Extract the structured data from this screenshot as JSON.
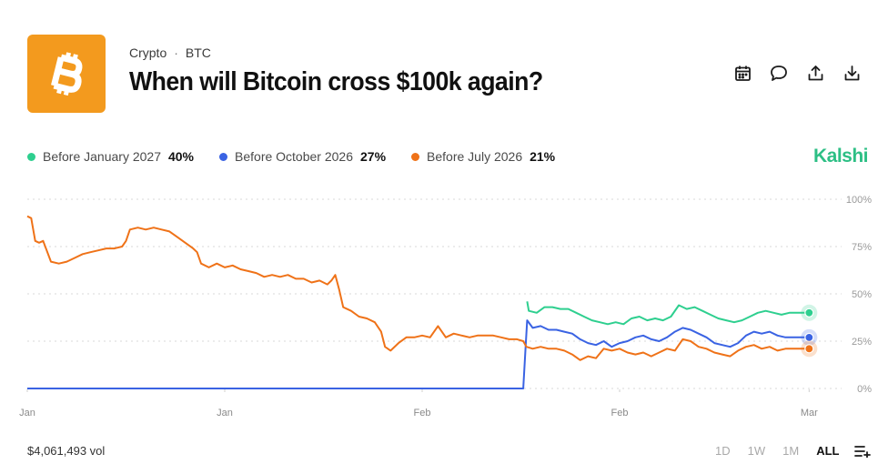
{
  "header": {
    "category": "Crypto",
    "separator": "·",
    "subcategory": "BTC",
    "title": "When will Bitcoin cross $100k again?",
    "logo_color": "#f39a1e",
    "actions": [
      {
        "name": "calendar-icon"
      },
      {
        "name": "comment-icon"
      },
      {
        "name": "share-icon"
      },
      {
        "name": "download-icon"
      }
    ]
  },
  "brand": "Kalshi",
  "footer": {
    "volume": "$4,061,493 vol",
    "ranges": [
      "1D",
      "1W",
      "1M",
      "ALL"
    ],
    "active_range": "ALL"
  },
  "chart_data": {
    "type": "line",
    "title": "When will Bitcoin cross $100k again?",
    "ylim": [
      0,
      100
    ],
    "y_unit": "%",
    "y_ticks": [
      "100%",
      "75%",
      "50%",
      "25%",
      "0%"
    ],
    "x_ticks": [
      "Jan",
      "Jan",
      "Feb",
      "Feb",
      "Mar"
    ],
    "x_domain": [
      0,
      100
    ],
    "series": [
      {
        "name": "Before January 2027",
        "label": "Before January 2027",
        "current": "40%",
        "color": "#2ecf8f",
        "points": [
          [
            63.3,
            46
          ],
          [
            63.5,
            41
          ],
          [
            64.5,
            40
          ],
          [
            65.5,
            43
          ],
          [
            66.5,
            43
          ],
          [
            67.5,
            42
          ],
          [
            68.5,
            42
          ],
          [
            69.5,
            40
          ],
          [
            70.5,
            38
          ],
          [
            71.5,
            36
          ],
          [
            72.5,
            35
          ],
          [
            73.5,
            34
          ],
          [
            74.5,
            35
          ],
          [
            75.5,
            34
          ],
          [
            76.5,
            37
          ],
          [
            77.5,
            38
          ],
          [
            78.5,
            36
          ],
          [
            79.5,
            37
          ],
          [
            80.5,
            36
          ],
          [
            81.5,
            38
          ],
          [
            82.5,
            44
          ],
          [
            83.5,
            42
          ],
          [
            84.5,
            43
          ],
          [
            85.5,
            41
          ],
          [
            86.5,
            39
          ],
          [
            87.5,
            37
          ],
          [
            88.5,
            36
          ],
          [
            89.5,
            35
          ],
          [
            90.5,
            36
          ],
          [
            91.5,
            38
          ],
          [
            92.5,
            40
          ],
          [
            93.5,
            41
          ],
          [
            94.5,
            40
          ],
          [
            95.5,
            39
          ],
          [
            96.5,
            40
          ],
          [
            97.5,
            40
          ],
          [
            99,
            40
          ]
        ]
      },
      {
        "name": "Before October 2026",
        "label": "Before October 2026",
        "current": "27%",
        "color": "#3a63e3",
        "points": [
          [
            0,
            0
          ],
          [
            62.8,
            0
          ],
          [
            63.1,
            22
          ],
          [
            63.3,
            36
          ],
          [
            64,
            32
          ],
          [
            65,
            33
          ],
          [
            66,
            31
          ],
          [
            67,
            31
          ],
          [
            68,
            30
          ],
          [
            69,
            29
          ],
          [
            70,
            26
          ],
          [
            71,
            24
          ],
          [
            72,
            23
          ],
          [
            73,
            25
          ],
          [
            74,
            22
          ],
          [
            75,
            24
          ],
          [
            76,
            25
          ],
          [
            77,
            27
          ],
          [
            78,
            28
          ],
          [
            79,
            26
          ],
          [
            80,
            25
          ],
          [
            81,
            27
          ],
          [
            82,
            30
          ],
          [
            83,
            32
          ],
          [
            84,
            31
          ],
          [
            85,
            29
          ],
          [
            86,
            27
          ],
          [
            87,
            24
          ],
          [
            88,
            23
          ],
          [
            89,
            22
          ],
          [
            90,
            24
          ],
          [
            91,
            28
          ],
          [
            92,
            30
          ],
          [
            93,
            29
          ],
          [
            94,
            30
          ],
          [
            95,
            28
          ],
          [
            96,
            27
          ],
          [
            97,
            27
          ],
          [
            99,
            27
          ]
        ]
      },
      {
        "name": "Before July 2026",
        "label": "Before July 2026",
        "current": "21%",
        "color": "#ef7218",
        "points": [
          [
            0,
            91
          ],
          [
            0.5,
            90
          ],
          [
            1,
            78
          ],
          [
            1.5,
            77
          ],
          [
            2,
            78
          ],
          [
            3,
            67
          ],
          [
            4,
            66
          ],
          [
            5,
            67
          ],
          [
            6,
            69
          ],
          [
            7,
            71
          ],
          [
            8,
            72
          ],
          [
            9,
            73
          ],
          [
            10,
            74
          ],
          [
            11,
            74
          ],
          [
            12,
            75
          ],
          [
            12.5,
            78
          ],
          [
            13,
            84
          ],
          [
            14,
            85
          ],
          [
            15,
            84
          ],
          [
            16,
            85
          ],
          [
            17,
            84
          ],
          [
            18,
            83
          ],
          [
            19,
            80
          ],
          [
            20,
            77
          ],
          [
            21,
            74
          ],
          [
            21.5,
            72
          ],
          [
            22,
            66
          ],
          [
            23,
            64
          ],
          [
            24,
            66
          ],
          [
            25,
            64
          ],
          [
            26,
            65
          ],
          [
            27,
            63
          ],
          [
            28,
            62
          ],
          [
            29,
            61
          ],
          [
            30,
            59
          ],
          [
            31,
            60
          ],
          [
            32,
            59
          ],
          [
            33,
            60
          ],
          [
            34,
            58
          ],
          [
            35,
            58
          ],
          [
            36,
            56
          ],
          [
            37,
            57
          ],
          [
            38,
            55
          ],
          [
            38.5,
            57
          ],
          [
            39,
            60
          ],
          [
            39.5,
            52
          ],
          [
            40,
            43
          ],
          [
            41,
            41
          ],
          [
            42,
            38
          ],
          [
            43,
            37
          ],
          [
            44,
            35
          ],
          [
            44.8,
            30
          ],
          [
            45.3,
            22
          ],
          [
            46,
            20
          ],
          [
            47,
            24
          ],
          [
            48,
            27
          ],
          [
            49,
            27
          ],
          [
            50,
            28
          ],
          [
            51,
            27
          ],
          [
            52,
            33
          ],
          [
            53,
            27
          ],
          [
            54,
            29
          ],
          [
            55,
            28
          ],
          [
            56,
            27
          ],
          [
            57,
            28
          ],
          [
            58,
            28
          ],
          [
            59,
            28
          ],
          [
            60,
            27
          ],
          [
            61,
            26
          ],
          [
            62,
            26
          ],
          [
            62.8,
            25
          ],
          [
            63.2,
            22
          ],
          [
            64,
            21
          ],
          [
            65,
            22
          ],
          [
            66,
            21
          ],
          [
            67,
            21
          ],
          [
            68,
            20
          ],
          [
            69,
            18
          ],
          [
            70,
            15
          ],
          [
            71,
            17
          ],
          [
            72,
            16
          ],
          [
            73,
            21
          ],
          [
            74,
            20
          ],
          [
            75,
            21
          ],
          [
            76,
            19
          ],
          [
            77,
            18
          ],
          [
            78,
            19
          ],
          [
            79,
            17
          ],
          [
            80,
            19
          ],
          [
            81,
            21
          ],
          [
            82,
            20
          ],
          [
            83,
            26
          ],
          [
            84,
            25
          ],
          [
            85,
            22
          ],
          [
            86,
            21
          ],
          [
            87,
            19
          ],
          [
            88,
            18
          ],
          [
            89,
            17
          ],
          [
            90,
            20
          ],
          [
            91,
            22
          ],
          [
            92,
            23
          ],
          [
            93,
            21
          ],
          [
            94,
            22
          ],
          [
            95,
            20
          ],
          [
            96,
            21
          ],
          [
            97,
            21
          ],
          [
            99,
            21
          ]
        ]
      }
    ]
  }
}
